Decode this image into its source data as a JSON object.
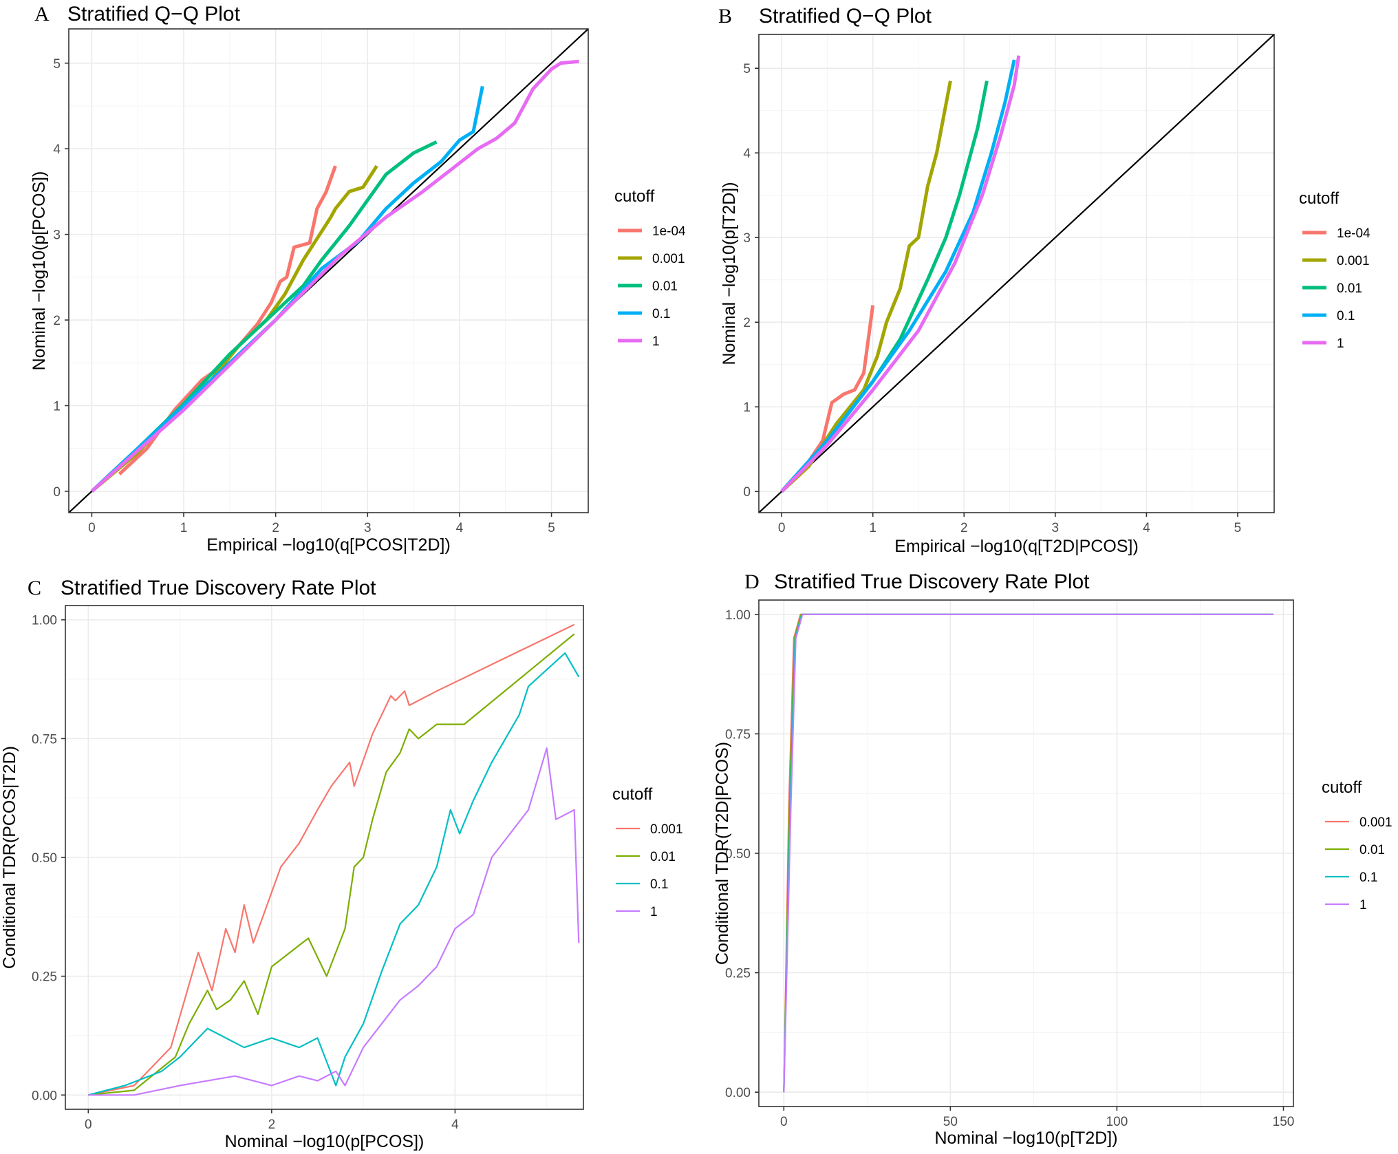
{
  "chart_data": [
    {
      "panel": "A",
      "type": "line",
      "title": "Stratified Q−Q Plot",
      "xlabel": "Empirical −log10(q[PCOS|T2D])",
      "ylabel": "Nominal −log10(p[PCOS])",
      "xlim": [
        -0.25,
        5.4
      ],
      "ylim": [
        -0.25,
        5.4
      ],
      "xticks": [
        0,
        1,
        2,
        3,
        4,
        5
      ],
      "yticks": [
        0,
        1,
        2,
        3,
        4,
        5
      ],
      "reference_line": "y = x",
      "legend_title": "cutoff",
      "legend_position": "right",
      "series": [
        {
          "name": "1e-04",
          "color": "#F8766D",
          "points": [
            [
              0.3,
              0.2
            ],
            [
              0.6,
              0.5
            ],
            [
              0.9,
              0.95
            ],
            [
              1.2,
              1.3
            ],
            [
              1.4,
              1.45
            ],
            [
              1.6,
              1.7
            ],
            [
              1.8,
              1.95
            ],
            [
              1.95,
              2.2
            ],
            [
              2.05,
              2.45
            ],
            [
              2.12,
              2.5
            ],
            [
              2.2,
              2.85
            ],
            [
              2.3,
              2.88
            ],
            [
              2.37,
              2.9
            ],
            [
              2.45,
              3.3
            ],
            [
              2.55,
              3.5
            ],
            [
              2.65,
              3.8
            ]
          ]
        },
        {
          "name": "0.001",
          "color": "#A3A500",
          "points": [
            [
              0,
              0
            ],
            [
              0.5,
              0.45
            ],
            [
              1,
              1.02
            ],
            [
              1.3,
              1.3
            ],
            [
              1.6,
              1.7
            ],
            [
              1.9,
              2.0
            ],
            [
              2.1,
              2.3
            ],
            [
              2.3,
              2.7
            ],
            [
              2.45,
              2.95
            ],
            [
              2.6,
              3.2
            ],
            [
              2.65,
              3.3
            ],
            [
              2.8,
              3.5
            ],
            [
              2.95,
              3.55
            ],
            [
              3.1,
              3.8
            ]
          ]
        },
        {
          "name": "0.01",
          "color": "#00BF7D",
          "points": [
            [
              0,
              0
            ],
            [
              0.5,
              0.5
            ],
            [
              1,
              1.02
            ],
            [
              1.5,
              1.6
            ],
            [
              2.0,
              2.1
            ],
            [
              2.3,
              2.4
            ],
            [
              2.5,
              2.7
            ],
            [
              2.8,
              3.1
            ],
            [
              3.0,
              3.4
            ],
            [
              3.2,
              3.7
            ],
            [
              3.5,
              3.95
            ],
            [
              3.75,
              4.08
            ]
          ]
        },
        {
          "name": "0.1",
          "color": "#00B0F6",
          "points": [
            [
              0,
              0
            ],
            [
              0.5,
              0.5
            ],
            [
              1,
              1.0
            ],
            [
              1.5,
              1.5
            ],
            [
              2.0,
              2.0
            ],
            [
              2.5,
              2.6
            ],
            [
              2.9,
              2.92
            ],
            [
              3.2,
              3.3
            ],
            [
              3.5,
              3.6
            ],
            [
              3.8,
              3.85
            ],
            [
              4.0,
              4.1
            ],
            [
              4.15,
              4.2
            ],
            [
              4.25,
              4.73
            ]
          ]
        },
        {
          "name": "1",
          "color": "#E76BF3",
          "points": [
            [
              0,
              0
            ],
            [
              1,
              0.95
            ],
            [
              2,
              2.0
            ],
            [
              2.7,
              2.75
            ],
            [
              3.2,
              3.2
            ],
            [
              3.6,
              3.5
            ],
            [
              3.9,
              3.75
            ],
            [
              4.2,
              4.0
            ],
            [
              4.4,
              4.12
            ],
            [
              4.6,
              4.3
            ],
            [
              4.8,
              4.7
            ],
            [
              5.0,
              4.93
            ],
            [
              5.1,
              5.0
            ],
            [
              5.3,
              5.02
            ]
          ]
        }
      ]
    },
    {
      "panel": "B",
      "type": "line",
      "title": "Stratified Q−Q Plot",
      "xlabel": "Empirical −log10(q[T2D|PCOS])",
      "ylabel": "Nominal −log10(p[T2D])",
      "xlim": [
        -0.25,
        5.4
      ],
      "ylim": [
        -0.25,
        5.4
      ],
      "xticks": [
        0,
        1,
        2,
        3,
        4,
        5
      ],
      "yticks": [
        0,
        1,
        2,
        3,
        4,
        5
      ],
      "reference_line": "y = x",
      "legend_title": "cutoff",
      "legend_position": "right",
      "series": [
        {
          "name": "1e-04",
          "color": "#F8766D",
          "points": [
            [
              0,
              0
            ],
            [
              0.2,
              0.2
            ],
            [
              0.45,
              0.6
            ],
            [
              0.55,
              1.05
            ],
            [
              0.68,
              1.15
            ],
            [
              0.8,
              1.2
            ],
            [
              0.9,
              1.4
            ],
            [
              1.0,
              2.2
            ]
          ]
        },
        {
          "name": "0.001",
          "color": "#A3A500",
          "points": [
            [
              0,
              0
            ],
            [
              0.3,
              0.3
            ],
            [
              0.6,
              0.8
            ],
            [
              0.9,
              1.2
            ],
            [
              1.05,
              1.6
            ],
            [
              1.15,
              2.0
            ],
            [
              1.3,
              2.4
            ],
            [
              1.4,
              2.9
            ],
            [
              1.5,
              3.0
            ],
            [
              1.6,
              3.6
            ],
            [
              1.7,
              4.0
            ],
            [
              1.85,
              4.85
            ]
          ]
        },
        {
          "name": "0.01",
          "color": "#00BF7D",
          "points": [
            [
              0,
              0
            ],
            [
              0.5,
              0.6
            ],
            [
              1.0,
              1.3
            ],
            [
              1.3,
              1.8
            ],
            [
              1.6,
              2.5
            ],
            [
              1.8,
              3.0
            ],
            [
              1.95,
              3.5
            ],
            [
              2.05,
              3.9
            ],
            [
              2.15,
              4.3
            ],
            [
              2.25,
              4.85
            ]
          ]
        },
        {
          "name": "0.1",
          "color": "#00B0F6",
          "points": [
            [
              0,
              0
            ],
            [
              0.5,
              0.6
            ],
            [
              1.0,
              1.3
            ],
            [
              1.4,
              1.9
            ],
            [
              1.8,
              2.6
            ],
            [
              2.1,
              3.3
            ],
            [
              2.3,
              4.0
            ],
            [
              2.45,
              4.6
            ],
            [
              2.55,
              5.1
            ]
          ]
        },
        {
          "name": "1",
          "color": "#E76BF3",
          "points": [
            [
              0,
              0
            ],
            [
              0.5,
              0.55
            ],
            [
              1.0,
              1.2
            ],
            [
              1.5,
              1.9
            ],
            [
              1.9,
              2.7
            ],
            [
              2.2,
              3.5
            ],
            [
              2.4,
              4.2
            ],
            [
              2.55,
              4.8
            ],
            [
              2.6,
              5.15
            ]
          ]
        }
      ]
    },
    {
      "panel": "C",
      "type": "line",
      "title": "Stratified True Discovery Rate Plot",
      "xlabel": "Nominal −log10(p[PCOS])",
      "ylabel": "Conditional TDR(PCOS|T2D)",
      "xlim": [
        -0.25,
        5.4
      ],
      "ylim": [
        -0.03,
        1.03
      ],
      "xticks": [
        0,
        2,
        4
      ],
      "yticks": [
        "0.00",
        "0.25",
        "0.50",
        "0.75",
        "1.00"
      ],
      "legend_title": "cutoff",
      "legend_position": "right",
      "series": [
        {
          "name": "0.001",
          "color": "#F8766D",
          "points": [
            [
              0,
              0
            ],
            [
              0.5,
              0.02
            ],
            [
              0.9,
              0.1
            ],
            [
              1.05,
              0.2
            ],
            [
              1.2,
              0.3
            ],
            [
              1.35,
              0.22
            ],
            [
              1.5,
              0.35
            ],
            [
              1.6,
              0.3
            ],
            [
              1.7,
              0.4
            ],
            [
              1.8,
              0.32
            ],
            [
              1.95,
              0.4
            ],
            [
              2.1,
              0.48
            ],
            [
              2.3,
              0.53
            ],
            [
              2.5,
              0.6
            ],
            [
              2.65,
              0.65
            ],
            [
              2.85,
              0.7
            ],
            [
              2.9,
              0.65
            ],
            [
              3.1,
              0.76
            ],
            [
              3.3,
              0.84
            ],
            [
              3.35,
              0.83
            ],
            [
              3.45,
              0.85
            ],
            [
              3.5,
              0.82
            ],
            [
              3.8,
              0.85
            ],
            [
              5.3,
              0.99
            ]
          ]
        },
        {
          "name": "0.01",
          "color": "#7CAE00",
          "points": [
            [
              0,
              0
            ],
            [
              0.5,
              0.01
            ],
            [
              0.95,
              0.08
            ],
            [
              1.1,
              0.15
            ],
            [
              1.3,
              0.22
            ],
            [
              1.4,
              0.18
            ],
            [
              1.55,
              0.2
            ],
            [
              1.7,
              0.24
            ],
            [
              1.85,
              0.17
            ],
            [
              2.0,
              0.27
            ],
            [
              2.2,
              0.3
            ],
            [
              2.4,
              0.33
            ],
            [
              2.6,
              0.25
            ],
            [
              2.8,
              0.35
            ],
            [
              2.9,
              0.48
            ],
            [
              3.0,
              0.5
            ],
            [
              3.1,
              0.58
            ],
            [
              3.25,
              0.68
            ],
            [
              3.4,
              0.72
            ],
            [
              3.5,
              0.77
            ],
            [
              3.6,
              0.75
            ],
            [
              3.8,
              0.78
            ],
            [
              4.1,
              0.78
            ],
            [
              5.3,
              0.97
            ]
          ]
        },
        {
          "name": "0.1",
          "color": "#00BFC4",
          "points": [
            [
              0,
              0
            ],
            [
              0.4,
              0.02
            ],
            [
              0.8,
              0.05
            ],
            [
              1.0,
              0.08
            ],
            [
              1.3,
              0.14
            ],
            [
              1.5,
              0.12
            ],
            [
              1.7,
              0.1
            ],
            [
              2.0,
              0.12
            ],
            [
              2.3,
              0.1
            ],
            [
              2.5,
              0.12
            ],
            [
              2.6,
              0.07
            ],
            [
              2.7,
              0.02
            ],
            [
              2.8,
              0.08
            ],
            [
              3.0,
              0.15
            ],
            [
              3.2,
              0.26
            ],
            [
              3.4,
              0.36
            ],
            [
              3.6,
              0.4
            ],
            [
              3.8,
              0.48
            ],
            [
              3.95,
              0.6
            ],
            [
              4.05,
              0.55
            ],
            [
              4.2,
              0.62
            ],
            [
              4.4,
              0.7
            ],
            [
              4.7,
              0.8
            ],
            [
              4.8,
              0.86
            ],
            [
              5.2,
              0.93
            ],
            [
              5.35,
              0.88
            ]
          ]
        },
        {
          "name": "1",
          "color": "#C77CFF",
          "points": [
            [
              0,
              0
            ],
            [
              0.5,
              0.0
            ],
            [
              1.0,
              0.02
            ],
            [
              1.3,
              0.03
            ],
            [
              1.6,
              0.04
            ],
            [
              2.0,
              0.02
            ],
            [
              2.3,
              0.04
            ],
            [
              2.5,
              0.03
            ],
            [
              2.7,
              0.05
            ],
            [
              2.8,
              0.02
            ],
            [
              3.0,
              0.1
            ],
            [
              3.2,
              0.15
            ],
            [
              3.4,
              0.2
            ],
            [
              3.6,
              0.23
            ],
            [
              3.8,
              0.27
            ],
            [
              4.0,
              0.35
            ],
            [
              4.2,
              0.38
            ],
            [
              4.4,
              0.5
            ],
            [
              4.6,
              0.55
            ],
            [
              4.8,
              0.6
            ],
            [
              5.0,
              0.73
            ],
            [
              5.1,
              0.58
            ],
            [
              5.3,
              0.6
            ],
            [
              5.35,
              0.32
            ]
          ]
        }
      ]
    },
    {
      "panel": "D",
      "type": "line",
      "title": "Stratified True Discovery Rate Plot",
      "xlabel": "Nominal −log10(p[T2D])",
      "ylabel": "Conditional TDR(T2D|PCOS)",
      "xlim": [
        -7.5,
        153
      ],
      "ylim": [
        -0.03,
        1.03
      ],
      "xticks": [
        0,
        50,
        100,
        150
      ],
      "yticks": [
        "0.00",
        "0.25",
        "0.50",
        "0.75",
        "1.00"
      ],
      "legend_title": "cutoff",
      "legend_position": "right",
      "series": [
        {
          "name": "0.001",
          "color": "#F8766D",
          "points": [
            [
              0,
              0
            ],
            [
              1.5,
              0.6
            ],
            [
              3,
              0.95
            ],
            [
              5,
              1.0
            ],
            [
              147,
              1.0
            ]
          ]
        },
        {
          "name": "0.01",
          "color": "#7CAE00",
          "points": [
            [
              0,
              0
            ],
            [
              1.7,
              0.6
            ],
            [
              3.2,
              0.95
            ],
            [
              5.2,
              1.0
            ],
            [
              147,
              1.0
            ]
          ]
        },
        {
          "name": "0.1",
          "color": "#00BFC4",
          "points": [
            [
              0,
              0
            ],
            [
              1.9,
              0.6
            ],
            [
              3.4,
              0.95
            ],
            [
              5.4,
              1.0
            ],
            [
              147,
              1.0
            ]
          ]
        },
        {
          "name": "1",
          "color": "#C77CFF",
          "points": [
            [
              0,
              0
            ],
            [
              2.1,
              0.6
            ],
            [
              3.6,
              0.95
            ],
            [
              5.6,
              1.0
            ],
            [
              147,
              1.0
            ]
          ]
        }
      ]
    }
  ]
}
